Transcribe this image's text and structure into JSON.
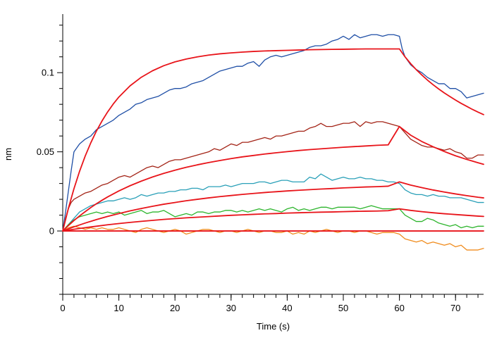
{
  "chart_data": {
    "type": "line",
    "xlabel": "Time (s)",
    "ylabel": "nm",
    "xlim": [
      0,
      75
    ],
    "ylim": [
      -0.04,
      0.137
    ],
    "x_ticks_major": [
      0,
      10,
      20,
      30,
      40,
      50,
      60,
      70
    ],
    "y_ticks_major": [
      0,
      0.05,
      0.1
    ],
    "y_tick_labels": [
      "0",
      "0.05",
      "0.1"
    ],
    "grid": false,
    "legend": "none",
    "series": [
      {
        "color": "#1f4fa6",
        "kind": "measured",
        "x": [
          0,
          0.5,
          1,
          1.5,
          2,
          3,
          4,
          5,
          6,
          7,
          8,
          9,
          10,
          11,
          12,
          13,
          14,
          15,
          16,
          17,
          18,
          19,
          20,
          21,
          22,
          23,
          24,
          25,
          26,
          27,
          28,
          29,
          30,
          31,
          32,
          33,
          34,
          35,
          36,
          37,
          38,
          39,
          40,
          41,
          42,
          43,
          44,
          45,
          46,
          47,
          48,
          49,
          50,
          51,
          52,
          53,
          54,
          55,
          56,
          57,
          58,
          59,
          60,
          60.5,
          61,
          62,
          63,
          64,
          65,
          66,
          67,
          68,
          69,
          70,
          71,
          72,
          73,
          74,
          75
        ],
        "y": [
          0.0,
          0.012,
          0.025,
          0.038,
          0.05,
          0.055,
          0.058,
          0.06,
          0.064,
          0.066,
          0.068,
          0.07,
          0.073,
          0.075,
          0.077,
          0.08,
          0.081,
          0.083,
          0.084,
          0.085,
          0.087,
          0.089,
          0.09,
          0.09,
          0.091,
          0.093,
          0.094,
          0.095,
          0.097,
          0.099,
          0.101,
          0.102,
          0.103,
          0.104,
          0.104,
          0.106,
          0.107,
          0.104,
          0.108,
          0.11,
          0.111,
          0.11,
          0.111,
          0.112,
          0.113,
          0.114,
          0.116,
          0.117,
          0.117,
          0.118,
          0.12,
          0.121,
          0.123,
          0.121,
          0.124,
          0.122,
          0.123,
          0.124,
          0.124,
          0.123,
          0.124,
          0.124,
          0.123,
          0.115,
          0.11,
          0.105,
          0.102,
          0.1,
          0.097,
          0.095,
          0.093,
          0.093,
          0.09,
          0.09,
          0.088,
          0.084,
          0.085,
          0.086,
          0.087
        ]
      },
      {
        "color": "#e8141a",
        "kind": "fit",
        "x": [
          0,
          1,
          2,
          3,
          4,
          5,
          6,
          7,
          8,
          9,
          10,
          12,
          14,
          16,
          18,
          20,
          22,
          24,
          26,
          28,
          30,
          32,
          34,
          36,
          38,
          40,
          42,
          44,
          46,
          48,
          50,
          52,
          54,
          56,
          58,
          60,
          61,
          62,
          63,
          64,
          65,
          66,
          67,
          68,
          69,
          70,
          71,
          72,
          73,
          74,
          75
        ],
        "y": [
          0,
          0.0142,
          0.0267,
          0.0377,
          0.0473,
          0.0557,
          0.0631,
          0.0695,
          0.0752,
          0.0802,
          0.0846,
          0.0917,
          0.0971,
          0.1012,
          0.1044,
          0.1068,
          0.1086,
          0.11,
          0.1111,
          0.1119,
          0.1125,
          0.113,
          0.1134,
          0.1137,
          0.1139,
          0.1141,
          0.1143,
          0.1145,
          0.1146,
          0.1147,
          0.1148,
          0.1149,
          0.115,
          0.115,
          0.115,
          0.115,
          0.11,
          0.1057,
          0.1019,
          0.0985,
          0.0953,
          0.0924,
          0.0897,
          0.0872,
          0.0849,
          0.0827,
          0.0806,
          0.0787,
          0.0768,
          0.0751,
          0.0735
        ]
      },
      {
        "color": "#a32316",
        "kind": "measured",
        "x": [
          0,
          0.5,
          1,
          1.5,
          2,
          3,
          4,
          5,
          6,
          7,
          8,
          9,
          10,
          11,
          12,
          13,
          14,
          15,
          16,
          17,
          18,
          19,
          20,
          21,
          22,
          23,
          24,
          25,
          26,
          27,
          28,
          29,
          30,
          31,
          32,
          33,
          34,
          35,
          36,
          37,
          38,
          39,
          40,
          41,
          42,
          43,
          44,
          45,
          46,
          47,
          48,
          49,
          50,
          51,
          52,
          53,
          54,
          55,
          56,
          57,
          58,
          59,
          60,
          61,
          62,
          63,
          64,
          65,
          66,
          67,
          68,
          69,
          70,
          71,
          72,
          73,
          74,
          75
        ],
        "y": [
          0.0,
          0.008,
          0.014,
          0.018,
          0.02,
          0.022,
          0.024,
          0.025,
          0.027,
          0.029,
          0.03,
          0.032,
          0.034,
          0.035,
          0.034,
          0.036,
          0.038,
          0.04,
          0.041,
          0.04,
          0.042,
          0.044,
          0.045,
          0.045,
          0.046,
          0.047,
          0.048,
          0.049,
          0.05,
          0.052,
          0.051,
          0.053,
          0.055,
          0.054,
          0.056,
          0.056,
          0.057,
          0.058,
          0.059,
          0.058,
          0.06,
          0.06,
          0.061,
          0.062,
          0.063,
          0.063,
          0.065,
          0.066,
          0.068,
          0.066,
          0.066,
          0.067,
          0.068,
          0.068,
          0.069,
          0.066,
          0.069,
          0.068,
          0.069,
          0.069,
          0.068,
          0.067,
          0.066,
          0.062,
          0.058,
          0.056,
          0.054,
          0.053,
          0.053,
          0.052,
          0.051,
          0.052,
          0.05,
          0.049,
          0.046,
          0.046,
          0.048,
          0.048
        ]
      },
      {
        "color": "#e8141a",
        "kind": "fit",
        "x": [
          0,
          1,
          2,
          3,
          4,
          5,
          6,
          7,
          8,
          9,
          10,
          12,
          14,
          16,
          18,
          20,
          22,
          24,
          26,
          28,
          30,
          32,
          34,
          36,
          38,
          40,
          42,
          44,
          46,
          48,
          50,
          52,
          54,
          56,
          58,
          60,
          62,
          64,
          66,
          68,
          70,
          72,
          74,
          75
        ],
        "y": [
          0,
          0.0034,
          0.0066,
          0.0095,
          0.0122,
          0.0148,
          0.0172,
          0.0194,
          0.0215,
          0.0234,
          0.0253,
          0.0286,
          0.0315,
          0.0341,
          0.0364,
          0.0384,
          0.0402,
          0.0418,
          0.0432,
          0.0445,
          0.0457,
          0.0468,
          0.0477,
          0.0486,
          0.0494,
          0.0501,
          0.0508,
          0.0514,
          0.0519,
          0.0524,
          0.0529,
          0.0533,
          0.0537,
          0.0541,
          0.0544,
          0.066,
          0.0605,
          0.0565,
          0.0532,
          0.0502,
          0.0475,
          0.0452,
          0.0431,
          0.0421
        ]
      },
      {
        "color": "#2aa0b8",
        "kind": "measured",
        "x": [
          0,
          1,
          2,
          3,
          4,
          5,
          6,
          7,
          8,
          9,
          10,
          11,
          12,
          13,
          14,
          15,
          16,
          17,
          18,
          19,
          20,
          21,
          22,
          23,
          24,
          25,
          26,
          27,
          28,
          29,
          30,
          31,
          32,
          33,
          34,
          35,
          36,
          37,
          38,
          39,
          40,
          41,
          42,
          43,
          44,
          45,
          46,
          47,
          48,
          49,
          50,
          51,
          52,
          53,
          54,
          55,
          56,
          57,
          58,
          59,
          60,
          61,
          62,
          63,
          64,
          65,
          66,
          67,
          68,
          69,
          70,
          71,
          72,
          73,
          74,
          75
        ],
        "y": [
          0.0,
          0.004,
          0.008,
          0.012,
          0.014,
          0.016,
          0.017,
          0.018,
          0.019,
          0.019,
          0.02,
          0.021,
          0.02,
          0.021,
          0.023,
          0.022,
          0.023,
          0.024,
          0.024,
          0.025,
          0.025,
          0.026,
          0.026,
          0.027,
          0.027,
          0.026,
          0.028,
          0.028,
          0.028,
          0.029,
          0.028,
          0.029,
          0.03,
          0.03,
          0.03,
          0.031,
          0.031,
          0.03,
          0.031,
          0.032,
          0.032,
          0.031,
          0.031,
          0.031,
          0.034,
          0.033,
          0.036,
          0.034,
          0.032,
          0.033,
          0.034,
          0.033,
          0.033,
          0.034,
          0.033,
          0.033,
          0.032,
          0.032,
          0.031,
          0.031,
          0.03,
          0.026,
          0.024,
          0.023,
          0.023,
          0.022,
          0.023,
          0.022,
          0.022,
          0.021,
          0.021,
          0.021,
          0.02,
          0.019,
          0.018,
          0.018
        ]
      },
      {
        "color": "#e8141a",
        "kind": "fit",
        "x": [
          0,
          2,
          4,
          6,
          8,
          10,
          12,
          14,
          16,
          18,
          20,
          22,
          24,
          26,
          28,
          30,
          32,
          34,
          36,
          38,
          40,
          42,
          44,
          46,
          48,
          50,
          52,
          54,
          56,
          58,
          60,
          62,
          64,
          66,
          68,
          70,
          72,
          74,
          75
        ],
        "y": [
          0,
          0.0026,
          0.005,
          0.0072,
          0.0092,
          0.011,
          0.0127,
          0.0142,
          0.0156,
          0.0169,
          0.018,
          0.0191,
          0.02,
          0.0209,
          0.0217,
          0.0224,
          0.0231,
          0.0237,
          0.0243,
          0.0248,
          0.0253,
          0.0257,
          0.0261,
          0.0265,
          0.0268,
          0.0272,
          0.0275,
          0.0278,
          0.028,
          0.0283,
          0.031,
          0.029,
          0.0274,
          0.0259,
          0.0246,
          0.0234,
          0.0223,
          0.0213,
          0.0209
        ]
      },
      {
        "color": "#2db52d",
        "kind": "measured",
        "x": [
          0,
          1,
          2,
          3,
          4,
          5,
          6,
          7,
          8,
          9,
          10,
          11,
          12,
          13,
          14,
          15,
          16,
          17,
          18,
          19,
          20,
          21,
          22,
          23,
          24,
          25,
          26,
          27,
          28,
          29,
          30,
          31,
          32,
          33,
          34,
          35,
          36,
          37,
          38,
          39,
          40,
          41,
          42,
          43,
          44,
          45,
          46,
          47,
          48,
          49,
          50,
          51,
          52,
          53,
          54,
          55,
          56,
          57,
          58,
          59,
          60,
          61,
          62,
          63,
          64,
          65,
          66,
          67,
          68,
          69,
          70,
          71,
          72,
          73,
          74,
          75
        ],
        "y": [
          0.0,
          0.004,
          0.007,
          0.009,
          0.01,
          0.011,
          0.012,
          0.011,
          0.012,
          0.011,
          0.012,
          0.01,
          0.011,
          0.012,
          0.013,
          0.011,
          0.012,
          0.012,
          0.013,
          0.011,
          0.009,
          0.01,
          0.011,
          0.01,
          0.012,
          0.012,
          0.011,
          0.012,
          0.012,
          0.013,
          0.013,
          0.012,
          0.013,
          0.012,
          0.013,
          0.014,
          0.013,
          0.014,
          0.013,
          0.012,
          0.014,
          0.015,
          0.013,
          0.014,
          0.013,
          0.014,
          0.015,
          0.015,
          0.014,
          0.015,
          0.015,
          0.015,
          0.015,
          0.014,
          0.015,
          0.016,
          0.015,
          0.014,
          0.014,
          0.014,
          0.014,
          0.01,
          0.008,
          0.006,
          0.006,
          0.008,
          0.007,
          0.005,
          0.004,
          0.003,
          0.004,
          0.002,
          0.003,
          0.002,
          0.003,
          0.003
        ]
      },
      {
        "color": "#e8141a",
        "kind": "fit",
        "x": [
          0,
          2,
          4,
          6,
          8,
          10,
          12,
          14,
          16,
          18,
          20,
          22,
          24,
          26,
          28,
          30,
          32,
          34,
          36,
          38,
          40,
          42,
          44,
          46,
          48,
          50,
          52,
          54,
          56,
          58,
          60,
          62,
          64,
          66,
          68,
          70,
          72,
          74,
          75
        ],
        "y": [
          0,
          0.0011,
          0.0021,
          0.003,
          0.0039,
          0.0047,
          0.0054,
          0.0061,
          0.0067,
          0.0073,
          0.0078,
          0.0083,
          0.0087,
          0.0091,
          0.0095,
          0.0099,
          0.0102,
          0.0105,
          0.0108,
          0.011,
          0.0113,
          0.0115,
          0.0117,
          0.0119,
          0.012,
          0.0122,
          0.0124,
          0.0125,
          0.0126,
          0.0128,
          0.014,
          0.013,
          0.0122,
          0.0115,
          0.0109,
          0.0104,
          0.0099,
          0.0094,
          0.0092
        ]
      },
      {
        "color": "#f08c1e",
        "kind": "measured",
        "x": [
          0,
          1,
          2,
          3,
          4,
          5,
          6,
          7,
          8,
          9,
          10,
          11,
          12,
          13,
          14,
          15,
          16,
          17,
          18,
          19,
          20,
          21,
          22,
          23,
          24,
          25,
          26,
          27,
          28,
          29,
          30,
          31,
          32,
          33,
          34,
          35,
          36,
          37,
          38,
          39,
          40,
          41,
          42,
          43,
          44,
          45,
          46,
          47,
          48,
          49,
          50,
          51,
          52,
          53,
          54,
          55,
          56,
          57,
          58,
          59,
          60,
          61,
          62,
          63,
          64,
          65,
          66,
          67,
          68,
          69,
          70,
          71,
          72,
          73,
          74,
          75
        ],
        "y": [
          0.0,
          0.002,
          0.003,
          0.002,
          0.001,
          0.002,
          0.001,
          0.002,
          0.001,
          0.001,
          0.002,
          0.001,
          0.0,
          -0.001,
          0.001,
          0.002,
          0.001,
          0.0,
          -0.001,
          0.0,
          0.001,
          0.0,
          -0.002,
          -0.001,
          0.0,
          0.001,
          0.001,
          0.0,
          -0.001,
          0.0,
          0.0,
          -0.001,
          0.0,
          0.001,
          0.0,
          -0.001,
          0.0,
          0.0,
          -0.001,
          -0.001,
          0.0,
          -0.002,
          -0.001,
          -0.002,
          0.0,
          -0.001,
          0.0,
          0.001,
          0.0,
          -0.001,
          0.0,
          0.0,
          -0.001,
          0.0,
          0.0,
          -0.001,
          -0.002,
          -0.001,
          -0.001,
          -0.001,
          -0.002,
          -0.005,
          -0.006,
          -0.007,
          -0.006,
          -0.008,
          -0.007,
          -0.008,
          -0.009,
          -0.008,
          -0.01,
          -0.009,
          -0.012,
          -0.012,
          -0.012,
          -0.011
        ]
      },
      {
        "color": "#e8141a",
        "kind": "fit",
        "x": [
          0,
          75
        ],
        "y": [
          0,
          0
        ]
      }
    ]
  }
}
